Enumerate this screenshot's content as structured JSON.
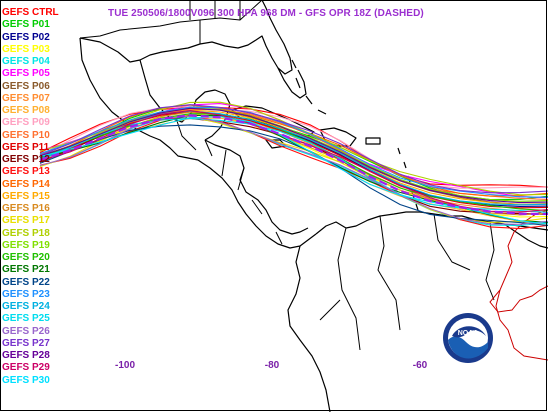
{
  "title": "TUE 250506/1800V096  300 HPA 968 DM - GFS OPR 18Z (DASHED)",
  "title_color": "#9b2fd0",
  "members": [
    {
      "label": "GEFS CTRL",
      "color": "#ff0000"
    },
    {
      "label": "GEFS P01",
      "color": "#00cc00"
    },
    {
      "label": "GEFS P02",
      "color": "#000090"
    },
    {
      "label": "GEFS P03",
      "color": "#ffff00"
    },
    {
      "label": "GEFS P04",
      "color": "#00e5e5"
    },
    {
      "label": "GEFS P05",
      "color": "#ff00ff"
    },
    {
      "label": "GEFS P06",
      "color": "#8a5a2b"
    },
    {
      "label": "GEFS P07",
      "color": "#ff8c30"
    },
    {
      "label": "GEFS P08",
      "color": "#ffb030"
    },
    {
      "label": "GEFS P09",
      "color": "#ffa0c0"
    },
    {
      "label": "GEFS P10",
      "color": "#ff7030"
    },
    {
      "label": "GEFS P11",
      "color": "#e00000"
    },
    {
      "label": "GEFS P12",
      "color": "#800000"
    },
    {
      "label": "GEFS P13",
      "color": "#ff1010"
    },
    {
      "label": "GEFS P14",
      "color": "#ff6600"
    },
    {
      "label": "GEFS P15",
      "color": "#ffaa00"
    },
    {
      "label": "GEFS P16",
      "color": "#d88a20"
    },
    {
      "label": "GEFS P17",
      "color": "#e8e000"
    },
    {
      "label": "GEFS P18",
      "color": "#b0d000"
    },
    {
      "label": "GEFS P19",
      "color": "#80e000"
    },
    {
      "label": "GEFS P20",
      "color": "#20c000"
    },
    {
      "label": "GEFS P21",
      "color": "#007700"
    },
    {
      "label": "GEFS P22",
      "color": "#004488"
    },
    {
      "label": "GEFS P23",
      "color": "#1e90ff"
    },
    {
      "label": "GEFS P24",
      "color": "#00b0e0"
    },
    {
      "label": "GEFS P25",
      "color": "#00ddee"
    },
    {
      "label": "GEFS P26",
      "color": "#9966cc"
    },
    {
      "label": "GEFS P27",
      "color": "#7733cc"
    },
    {
      "label": "GEFS P28",
      "color": "#660099"
    },
    {
      "label": "GEFS P29",
      "color": "#cc0066"
    },
    {
      "label": "GEFS P30",
      "color": "#00e0ff"
    }
  ],
  "longitude_labels": [
    "-100",
    "-80",
    "-60"
  ],
  "logo_text": "NOAA",
  "colors": {
    "coastline": "#000000",
    "border": "#cc0000",
    "gfs_opr_dashed": "#a020f0",
    "axis_labels": "#7a1fa8"
  }
}
